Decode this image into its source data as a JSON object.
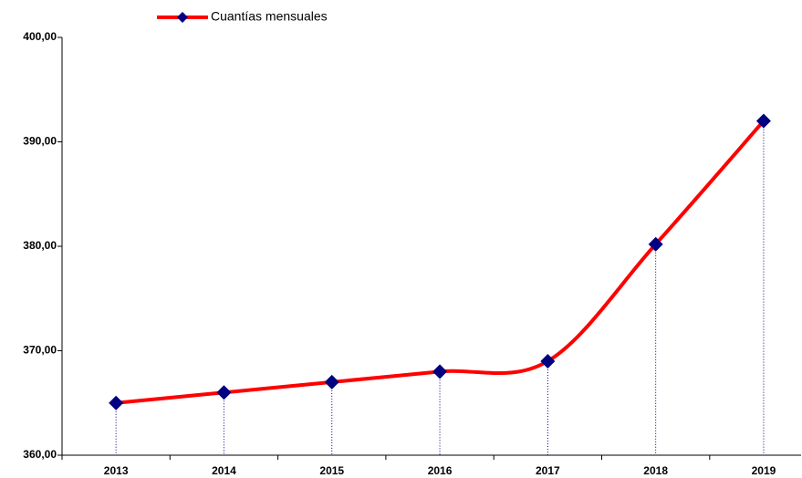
{
  "chart_data": {
    "type": "line",
    "categories": [
      "2013",
      "2014",
      "2015",
      "2016",
      "2017",
      "2018",
      "2019"
    ],
    "series": [
      {
        "name": "Cuantías mensuales",
        "color": "#ff0000",
        "marker_color": "#000080",
        "values": [
          365,
          366,
          367,
          368,
          369,
          380.2,
          392
        ]
      }
    ],
    "ylim": [
      360,
      400
    ],
    "yticks": [
      {
        "value": 360,
        "label": "360,00"
      },
      {
        "value": 370,
        "label": "370,00"
      },
      {
        "value": 380,
        "label": "380,00"
      },
      {
        "value": 390,
        "label": "390,00"
      },
      {
        "value": 400,
        "label": "400,00"
      }
    ],
    "legend": "top-left",
    "smooth": true,
    "drop_lines": true
  }
}
